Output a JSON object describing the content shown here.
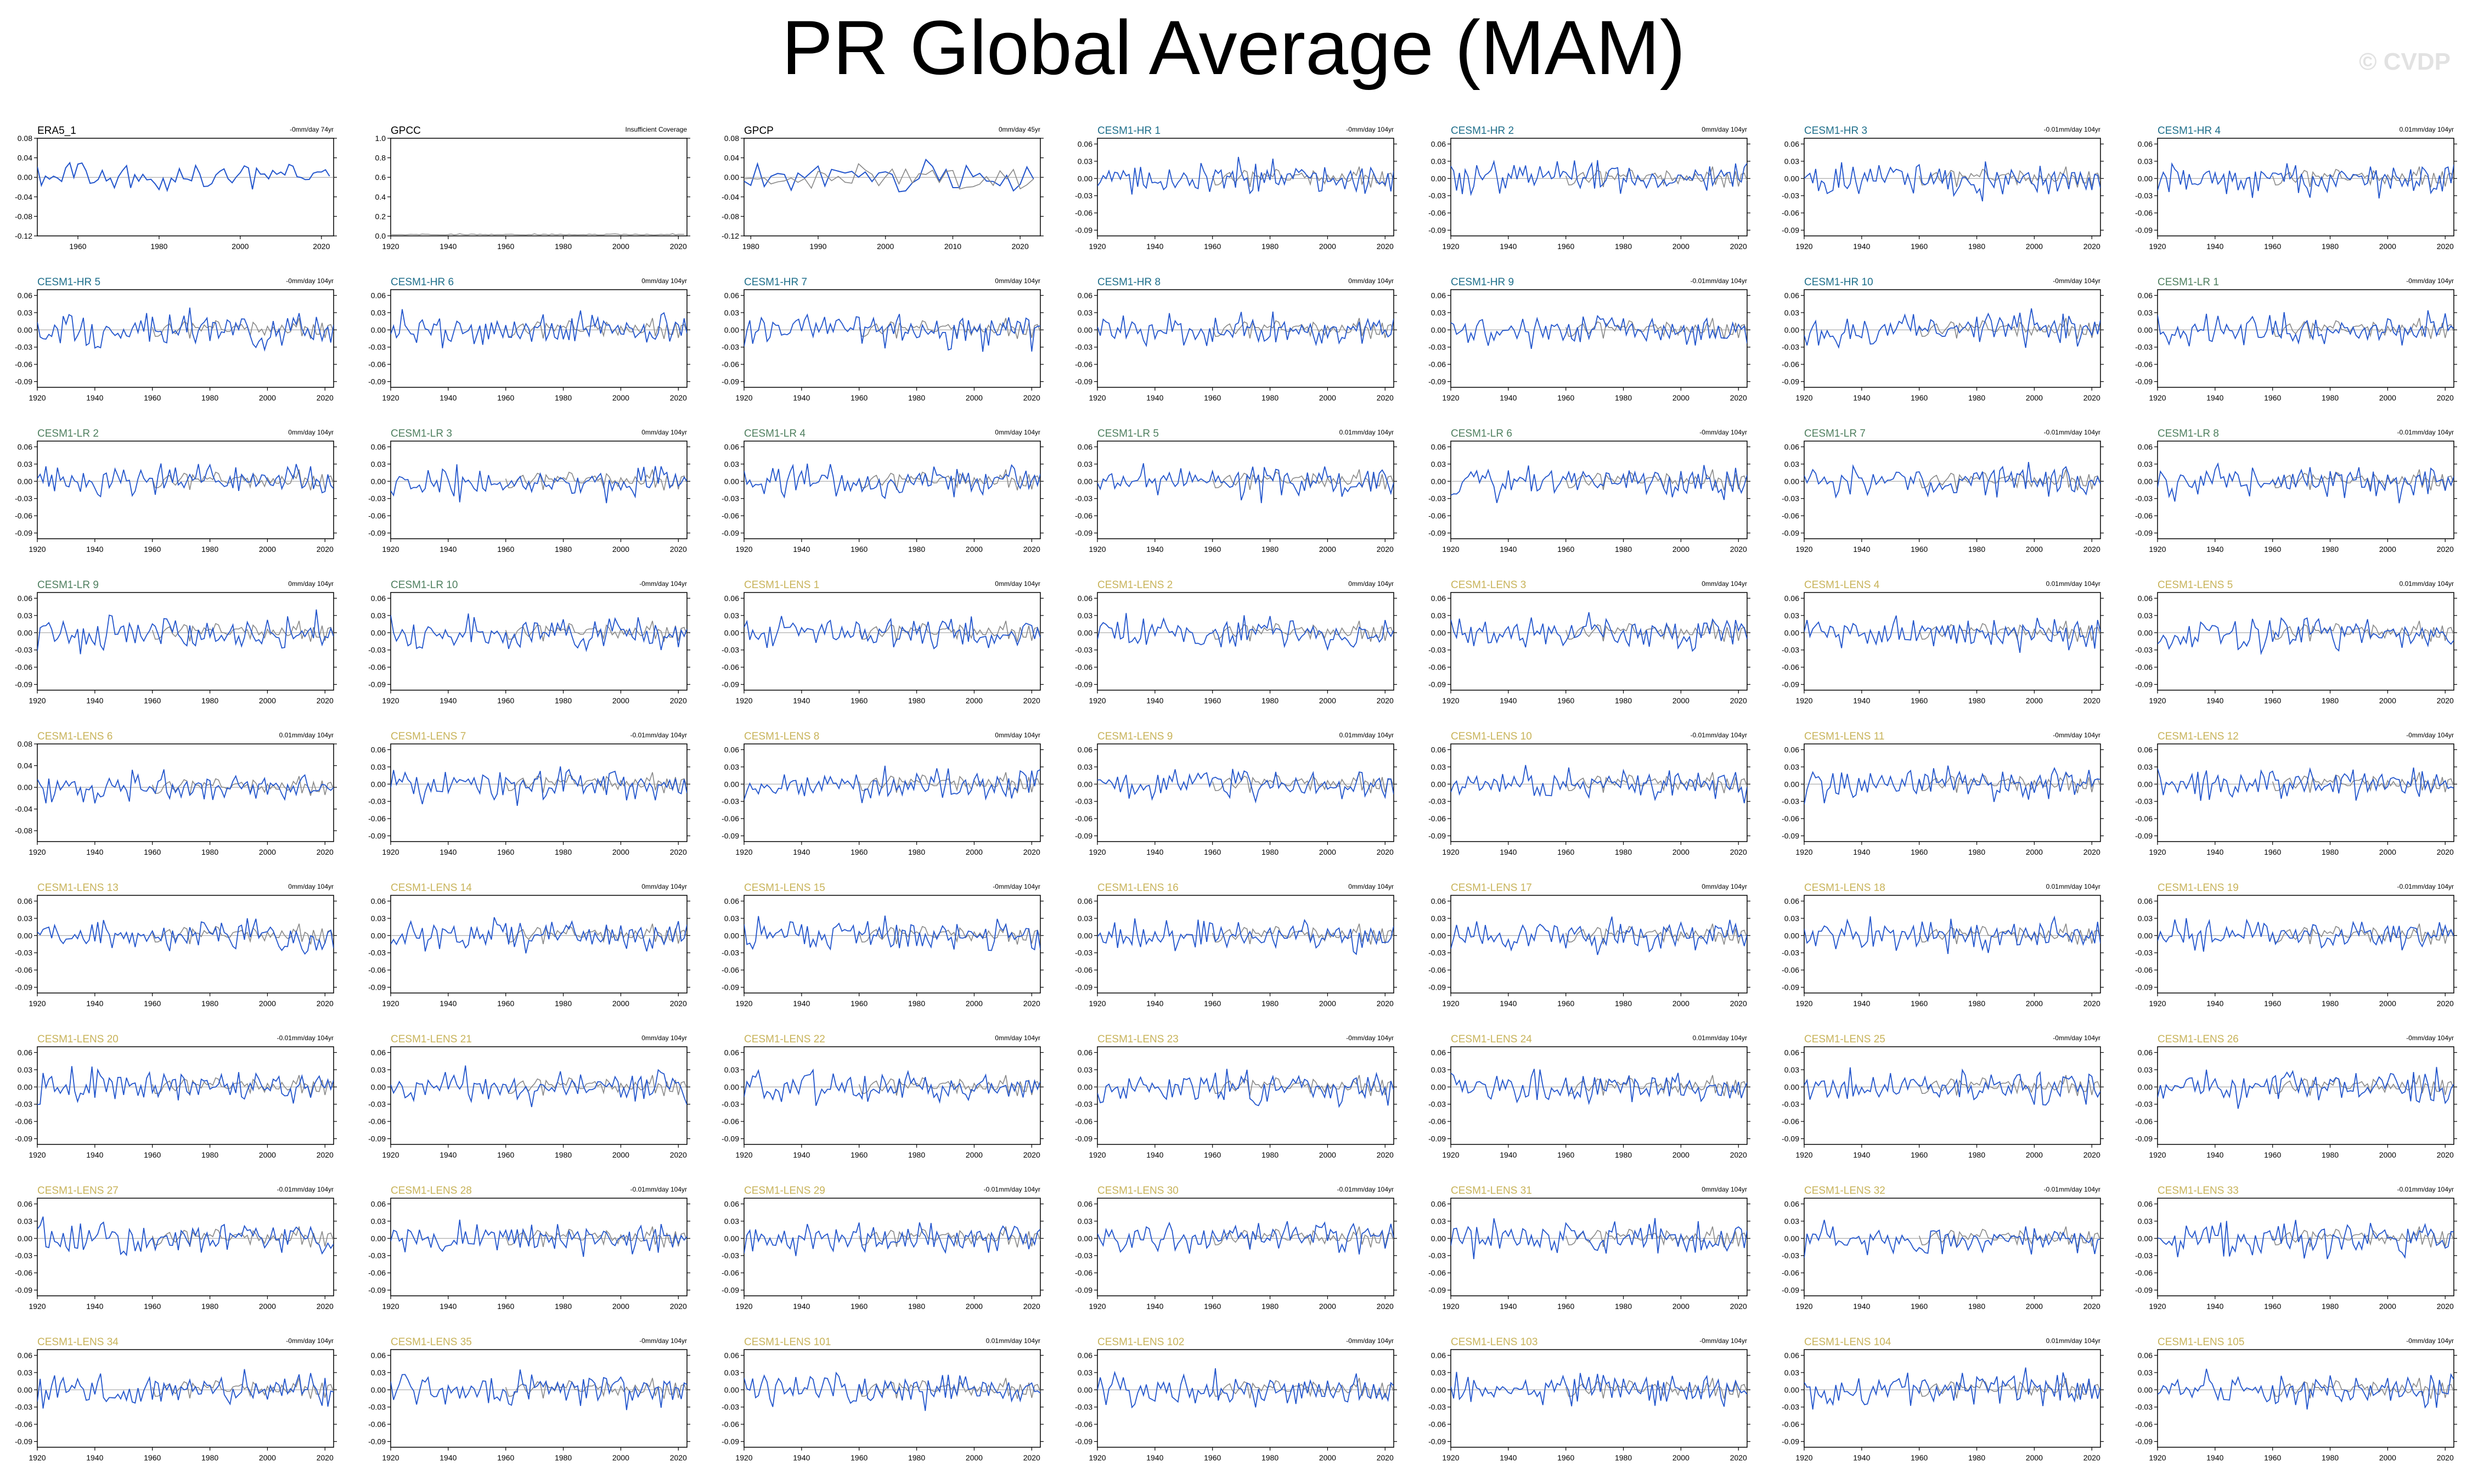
{
  "page": {
    "title": "PR Global Average (MAM)",
    "watermark": "© CVDP"
  },
  "colors": {
    "obs_title": "#000000",
    "hr_title": "#1f6f8b",
    "lr_title": "#4f7f5f",
    "lens_title": "#c8b35a",
    "model_line": "#2255cc",
    "obs_line": "#888888",
    "obs_main_line": "#2255cc",
    "zero_line": "#999999"
  },
  "chart_data": [
    {
      "type": "line",
      "title": "ERA5_1",
      "trend": "-0mm/day 74yr",
      "xlim": [
        1950,
        2023
      ],
      "ylim": [
        -0.12,
        0.08
      ],
      "yticks": [
        "0.08",
        "0.04",
        "0.00",
        "-0.04",
        "-0.08",
        "-0.12"
      ],
      "xticks": [
        "1960",
        "1980",
        "2000",
        "2020"
      ],
      "group": "obs"
    },
    {
      "type": "line",
      "title": "GPCC",
      "trend": "Insufficient Coverage",
      "xlim": [
        1920,
        2023
      ],
      "ylim": [
        0.0,
        1.0
      ],
      "yticks": [
        "1.0",
        "0.8",
        "0.6",
        "0.4",
        "0.2",
        "0.0"
      ],
      "xticks": [
        "1920",
        "1940",
        "1960",
        "1980",
        "2000",
        "2020"
      ],
      "group": "obs"
    },
    {
      "type": "line",
      "title": "GPCP",
      "trend": "0mm/day 45yr",
      "xlim": [
        1979,
        2023
      ],
      "ylim": [
        -0.12,
        0.08
      ],
      "yticks": [
        "0.08",
        "0.04",
        "0.00",
        "-0.04",
        "-0.08",
        "-0.12"
      ],
      "xticks": [
        "1980",
        "1990",
        "2000",
        "2010",
        "2020"
      ],
      "group": "obs"
    },
    {
      "type": "line",
      "title": "CESM1-HR 1",
      "trend": "-0mm/day 104yr",
      "group": "hr"
    },
    {
      "type": "line",
      "title": "CESM1-HR 2",
      "trend": "0mm/day 104yr",
      "group": "hr"
    },
    {
      "type": "line",
      "title": "CESM1-HR 3",
      "trend": "-0.01mm/day 104yr",
      "group": "hr"
    },
    {
      "type": "line",
      "title": "CESM1-HR 4",
      "trend": "0.01mm/day 104yr",
      "group": "hr"
    },
    {
      "type": "line",
      "title": "CESM1-HR 5",
      "trend": "-0mm/day 104yr",
      "group": "hr"
    },
    {
      "type": "line",
      "title": "CESM1-HR 6",
      "trend": "0mm/day 104yr",
      "group": "hr"
    },
    {
      "type": "line",
      "title": "CESM1-HR 7",
      "trend": "0mm/day 104yr",
      "group": "hr"
    },
    {
      "type": "line",
      "title": "CESM1-HR 8",
      "trend": "0mm/day 104yr",
      "group": "hr"
    },
    {
      "type": "line",
      "title": "CESM1-HR 9",
      "trend": "-0.01mm/day 104yr",
      "group": "hr"
    },
    {
      "type": "line",
      "title": "CESM1-HR 10",
      "trend": "-0mm/day 104yr",
      "group": "hr"
    },
    {
      "type": "line",
      "title": "CESM1-LR 1",
      "trend": "-0mm/day 104yr",
      "group": "lr"
    },
    {
      "type": "line",
      "title": "CESM1-LR 2",
      "trend": "0mm/day 104yr",
      "group": "lr"
    },
    {
      "type": "line",
      "title": "CESM1-LR 3",
      "trend": "0mm/day 104yr",
      "group": "lr"
    },
    {
      "type": "line",
      "title": "CESM1-LR 4",
      "trend": "0mm/day 104yr",
      "group": "lr"
    },
    {
      "type": "line",
      "title": "CESM1-LR 5",
      "trend": "0.01mm/day 104yr",
      "group": "lr"
    },
    {
      "type": "line",
      "title": "CESM1-LR 6",
      "trend": "-0mm/day 104yr",
      "group": "lr"
    },
    {
      "type": "line",
      "title": "CESM1-LR 7",
      "trend": "-0.01mm/day 104yr",
      "group": "lr"
    },
    {
      "type": "line",
      "title": "CESM1-LR 8",
      "trend": "-0.01mm/day 104yr",
      "group": "lr"
    },
    {
      "type": "line",
      "title": "CESM1-LR 9",
      "trend": "0mm/day 104yr",
      "group": "lr"
    },
    {
      "type": "line",
      "title": "CESM1-LR 10",
      "trend": "-0mm/day 104yr",
      "group": "lr"
    },
    {
      "type": "line",
      "title": "CESM1-LENS 1",
      "trend": "0mm/day 104yr",
      "group": "lens"
    },
    {
      "type": "line",
      "title": "CESM1-LENS 2",
      "trend": "0mm/day 104yr",
      "group": "lens"
    },
    {
      "type": "line",
      "title": "CESM1-LENS 3",
      "trend": "0mm/day 104yr",
      "group": "lens"
    },
    {
      "type": "line",
      "title": "CESM1-LENS 4",
      "trend": "0.01mm/day 104yr",
      "group": "lens"
    },
    {
      "type": "line",
      "title": "CESM1-LENS 5",
      "trend": "0.01mm/day 104yr",
      "group": "lens"
    },
    {
      "type": "line",
      "title": "CESM1-LENS 6",
      "trend": "0.01mm/day 104yr",
      "ylim": [
        -0.1,
        0.08
      ],
      "yticks": [
        "0.08",
        "0.04",
        "0.00",
        "-0.04",
        "-0.08"
      ],
      "group": "lens"
    },
    {
      "type": "line",
      "title": "CESM1-LENS 7",
      "trend": "-0.01mm/day 104yr",
      "group": "lens"
    },
    {
      "type": "line",
      "title": "CESM1-LENS 8",
      "trend": "0mm/day 104yr",
      "group": "lens"
    },
    {
      "type": "line",
      "title": "CESM1-LENS 9",
      "trend": "0.01mm/day 104yr",
      "group": "lens"
    },
    {
      "type": "line",
      "title": "CESM1-LENS 10",
      "trend": "-0.01mm/day 104yr",
      "group": "lens"
    },
    {
      "type": "line",
      "title": "CESM1-LENS 11",
      "trend": "-0mm/day 104yr",
      "group": "lens"
    },
    {
      "type": "line",
      "title": "CESM1-LENS 12",
      "trend": "-0mm/day 104yr",
      "group": "lens"
    },
    {
      "type": "line",
      "title": "CESM1-LENS 13",
      "trend": "0mm/day 104yr",
      "group": "lens"
    },
    {
      "type": "line",
      "title": "CESM1-LENS 14",
      "trend": "0mm/day 104yr",
      "group": "lens"
    },
    {
      "type": "line",
      "title": "CESM1-LENS 15",
      "trend": "-0mm/day 104yr",
      "group": "lens"
    },
    {
      "type": "line",
      "title": "CESM1-LENS 16",
      "trend": "0mm/day 104yr",
      "group": "lens"
    },
    {
      "type": "line",
      "title": "CESM1-LENS 17",
      "trend": "0mm/day 104yr",
      "group": "lens"
    },
    {
      "type": "line",
      "title": "CESM1-LENS 18",
      "trend": "0.01mm/day 104yr",
      "group": "lens"
    },
    {
      "type": "line",
      "title": "CESM1-LENS 19",
      "trend": "-0.01mm/day 104yr",
      "group": "lens"
    },
    {
      "type": "line",
      "title": "CESM1-LENS 20",
      "trend": "-0.01mm/day 104yr",
      "group": "lens"
    },
    {
      "type": "line",
      "title": "CESM1-LENS 21",
      "trend": "0mm/day 104yr",
      "group": "lens"
    },
    {
      "type": "line",
      "title": "CESM1-LENS 22",
      "trend": "0mm/day 104yr",
      "group": "lens"
    },
    {
      "type": "line",
      "title": "CESM1-LENS 23",
      "trend": "-0mm/day 104yr",
      "group": "lens"
    },
    {
      "type": "line",
      "title": "CESM1-LENS 24",
      "trend": "0.01mm/day 104yr",
      "group": "lens"
    },
    {
      "type": "line",
      "title": "CESM1-LENS 25",
      "trend": "-0mm/day 104yr",
      "group": "lens"
    },
    {
      "type": "line",
      "title": "CESM1-LENS 26",
      "trend": "-0mm/day 104yr",
      "group": "lens"
    },
    {
      "type": "line",
      "title": "CESM1-LENS 27",
      "trend": "-0.01mm/day 104yr",
      "group": "lens"
    },
    {
      "type": "line",
      "title": "CESM1-LENS 28",
      "trend": "-0.01mm/day 104yr",
      "group": "lens"
    },
    {
      "type": "line",
      "title": "CESM1-LENS 29",
      "trend": "-0.01mm/day 104yr",
      "group": "lens"
    },
    {
      "type": "line",
      "title": "CESM1-LENS 30",
      "trend": "-0.01mm/day 104yr",
      "group": "lens"
    },
    {
      "type": "line",
      "title": "CESM1-LENS 31",
      "trend": "0mm/day 104yr",
      "group": "lens"
    },
    {
      "type": "line",
      "title": "CESM1-LENS 32",
      "trend": "-0.01mm/day 104yr",
      "group": "lens"
    },
    {
      "type": "line",
      "title": "CESM1-LENS 33",
      "trend": "-0.01mm/day 104yr",
      "group": "lens"
    },
    {
      "type": "line",
      "title": "CESM1-LENS 34",
      "trend": "-0mm/day 104yr",
      "group": "lens"
    },
    {
      "type": "line",
      "title": "CESM1-LENS 35",
      "trend": "-0mm/day 104yr",
      "group": "lens"
    },
    {
      "type": "line",
      "title": "CESM1-LENS 101",
      "trend": "0.01mm/day 104yr",
      "group": "lens"
    },
    {
      "type": "line",
      "title": "CESM1-LENS 102",
      "trend": "-0mm/day 104yr",
      "group": "lens"
    },
    {
      "type": "line",
      "title": "CESM1-LENS 103",
      "trend": "-0mm/day 104yr",
      "group": "lens"
    },
    {
      "type": "line",
      "title": "CESM1-LENS 104",
      "trend": "0.01mm/day 104yr",
      "group": "lens"
    },
    {
      "type": "line",
      "title": "CESM1-LENS 105",
      "trend": "-0mm/day 104yr",
      "group": "lens"
    }
  ],
  "defaults": {
    "xlim": [
      1920,
      2023
    ],
    "ylim": [
      -0.1,
      0.07
    ],
    "yticks": [
      "0.06",
      "0.03",
      "0.00",
      "-0.03",
      "-0.06",
      "-0.09"
    ],
    "xticks": [
      "1920",
      "1940",
      "1960",
      "1980",
      "2000",
      "2020"
    ]
  }
}
